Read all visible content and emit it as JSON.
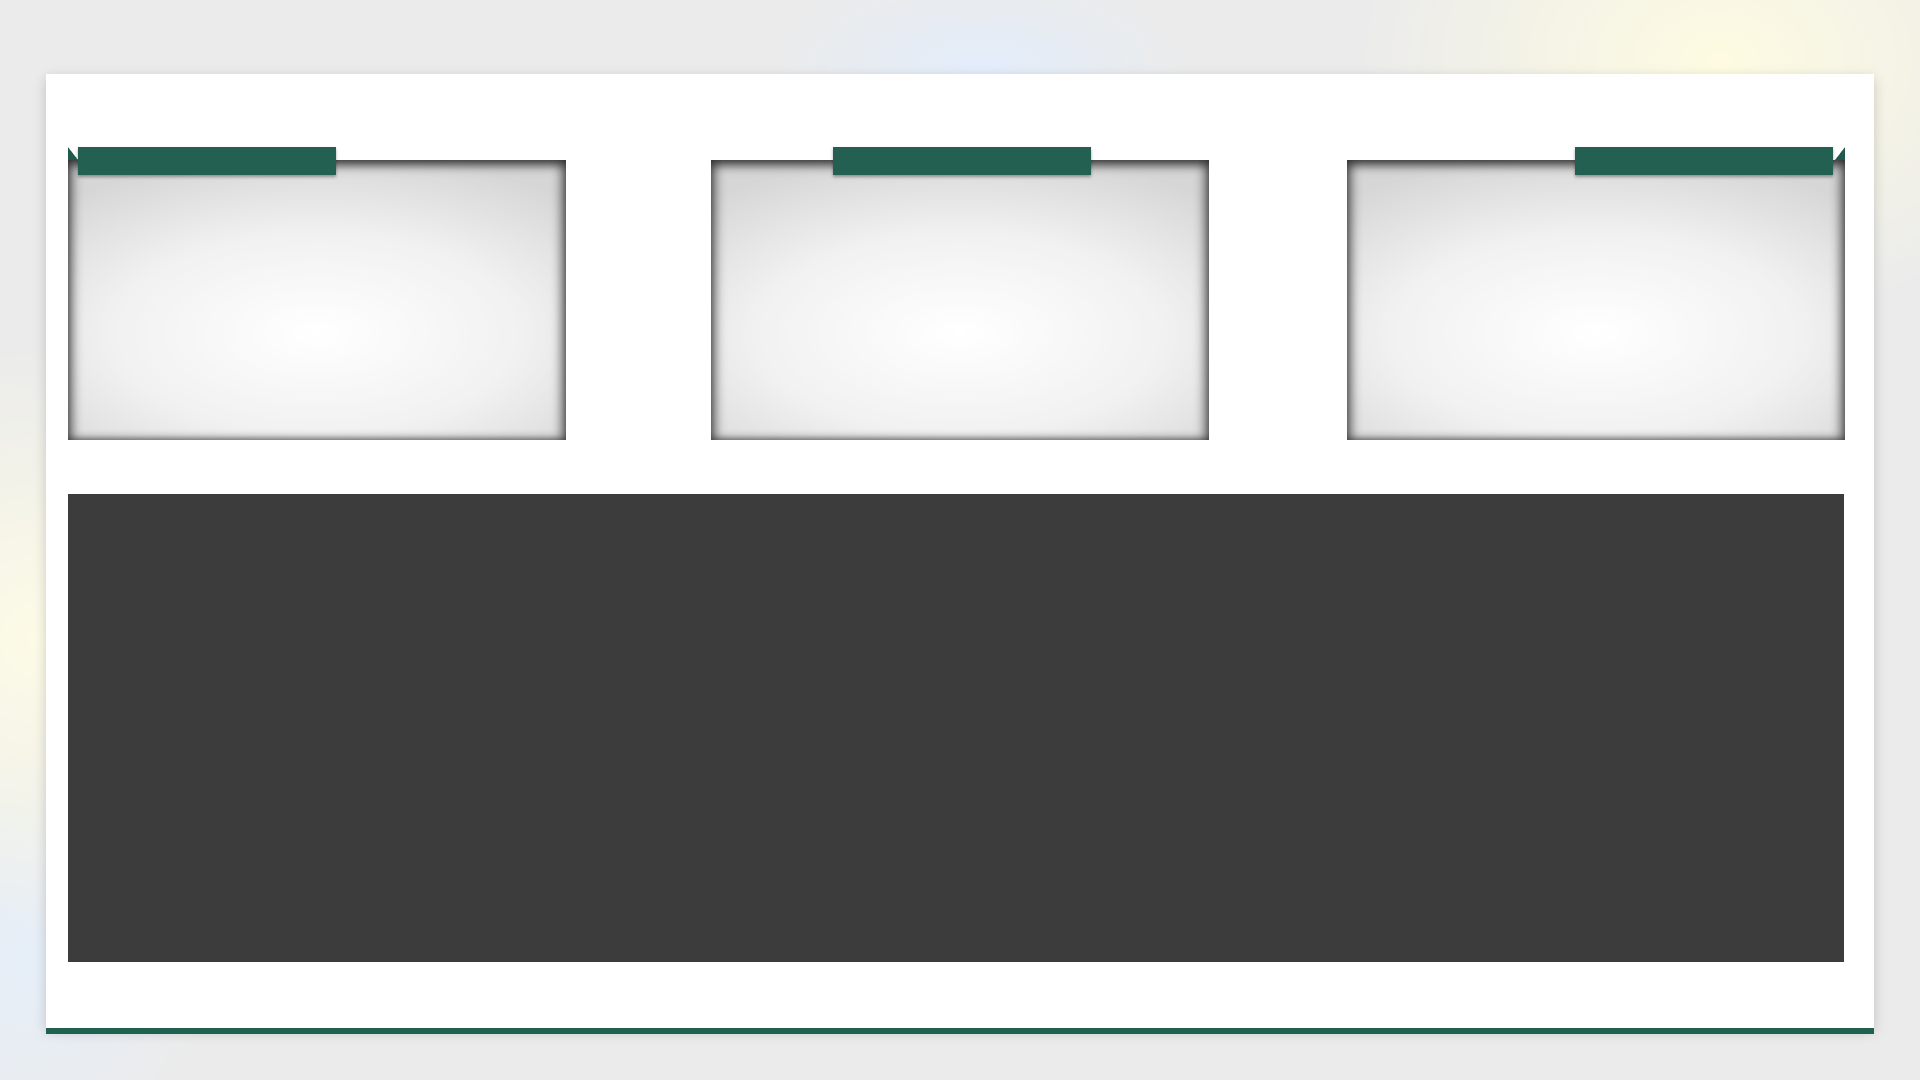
{
  "slide": {
    "accent_color": "#236052",
    "panel_color": "#3c3c3c"
  },
  "cards": [
    {
      "tab_label": ""
    },
    {
      "tab_label": ""
    },
    {
      "tab_label": ""
    }
  ],
  "content_panel": {
    "text": ""
  }
}
